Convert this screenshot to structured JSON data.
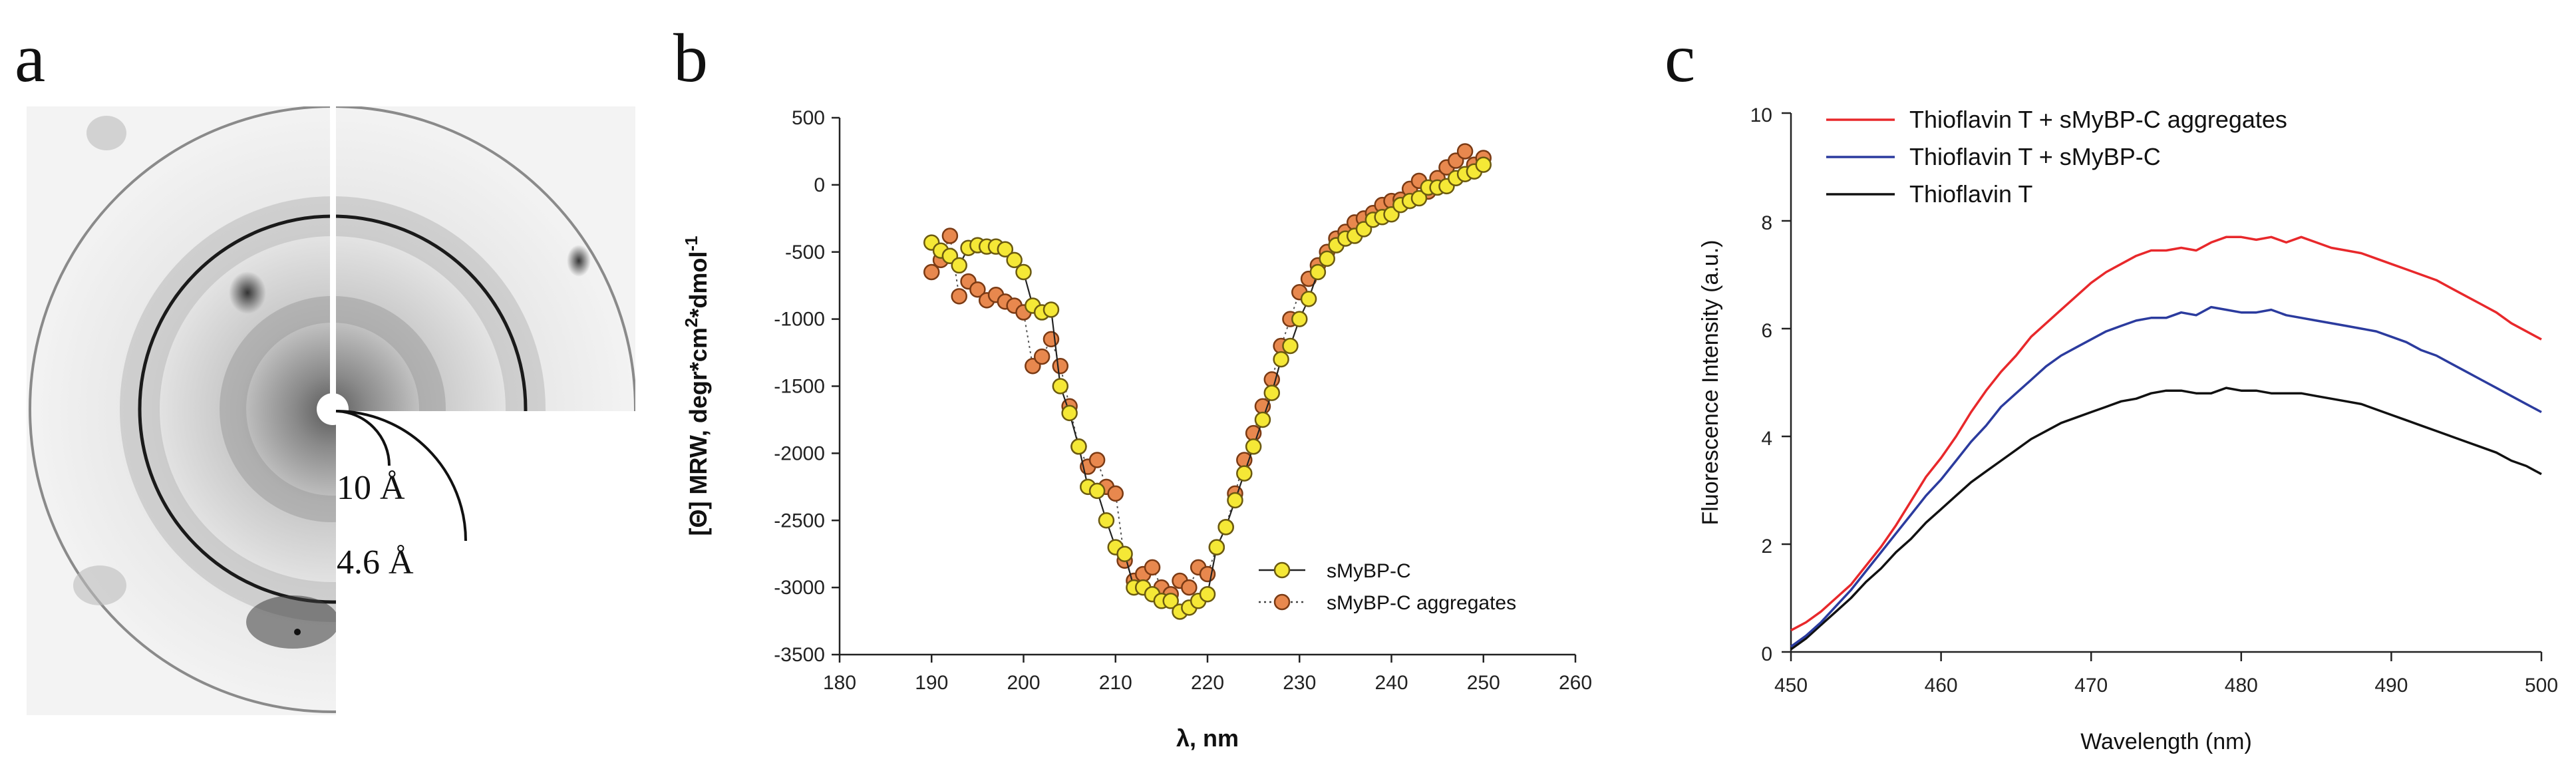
{
  "panels": {
    "a": {
      "letter": "a",
      "ring_labels": [
        "10 Å",
        "4.6 Å"
      ]
    },
    "b": {
      "letter": "b"
    },
    "c": {
      "letter": "c"
    }
  },
  "chart_data": [
    {
      "id": "b",
      "type": "scatter",
      "title": "",
      "xlabel": "λ, nm",
      "ylabel": "[Θ] MRW, degr*cm²*dmol⁻¹",
      "ylabel_parts": [
        "[Θ] MRW, degr*cm",
        "2",
        "*dmol",
        "-1"
      ],
      "xlim": [
        180,
        260
      ],
      "ylim": [
        -3500,
        500
      ],
      "xticks": [
        180,
        190,
        200,
        210,
        220,
        230,
        240,
        250,
        260
      ],
      "yticks": [
        500,
        0,
        -500,
        -1000,
        -1500,
        -2000,
        -2500,
        -3000,
        -3500
      ],
      "legend_position": "bottom-right",
      "series": [
        {
          "name": "sMyBP-C",
          "color": "#F5E836",
          "edge": "#6b5a10",
          "line": "solid",
          "x": [
            190,
            191,
            192,
            193,
            194,
            195,
            196,
            197,
            198,
            199,
            200,
            201,
            202,
            203,
            204,
            205,
            206,
            207,
            208,
            209,
            210,
            211,
            212,
            213,
            214,
            215,
            216,
            217,
            218,
            219,
            220,
            221,
            222,
            223,
            224,
            225,
            226,
            227,
            228,
            229,
            230,
            231,
            232,
            233,
            234,
            235,
            236,
            237,
            238,
            239,
            240,
            241,
            242,
            243,
            244,
            245,
            246,
            247,
            248,
            249,
            250
          ],
          "y": [
            -430,
            -490,
            -530,
            -600,
            -470,
            -450,
            -460,
            -460,
            -480,
            -560,
            -650,
            -900,
            -950,
            -930,
            -1500,
            -1700,
            -1950,
            -2250,
            -2280,
            -2500,
            -2700,
            -2750,
            -3000,
            -3000,
            -3050,
            -3100,
            -3100,
            -3180,
            -3150,
            -3100,
            -3050,
            -2700,
            -2550,
            -2350,
            -2150,
            -1950,
            -1750,
            -1550,
            -1300,
            -1200,
            -1000,
            -850,
            -650,
            -550,
            -450,
            -400,
            -380,
            -330,
            -260,
            -240,
            -220,
            -150,
            -120,
            -100,
            -20,
            -20,
            -10,
            50,
            80,
            100,
            150
          ]
        },
        {
          "name": "sMyBP-C aggregates",
          "color": "#E8884E",
          "edge": "#7a3a14",
          "line": "dotted",
          "x": [
            190,
            191,
            192,
            193,
            194,
            195,
            196,
            197,
            198,
            199,
            200,
            201,
            202,
            203,
            204,
            205,
            206,
            207,
            208,
            209,
            210,
            211,
            212,
            213,
            214,
            215,
            216,
            217,
            218,
            219,
            220,
            221,
            222,
            223,
            224,
            225,
            226,
            227,
            228,
            229,
            230,
            231,
            232,
            233,
            234,
            235,
            236,
            237,
            238,
            239,
            240,
            241,
            242,
            243,
            244,
            245,
            246,
            247,
            248,
            249,
            250
          ],
          "y": [
            -650,
            -560,
            -380,
            -830,
            -720,
            -780,
            -860,
            -820,
            -870,
            -900,
            -950,
            -1350,
            -1280,
            -1150,
            -1350,
            -1650,
            -1950,
            -2100,
            -2050,
            -2250,
            -2300,
            -2800,
            -2950,
            -2900,
            -2850,
            -3000,
            -3050,
            -2950,
            -3000,
            -2850,
            -2900,
            -2700,
            -2550,
            -2300,
            -2050,
            -1850,
            -1650,
            -1450,
            -1200,
            -1000,
            -800,
            -700,
            -600,
            -500,
            -400,
            -350,
            -280,
            -250,
            -210,
            -150,
            -120,
            -110,
            -30,
            30,
            -50,
            50,
            130,
            180,
            250,
            150,
            200
          ]
        }
      ]
    },
    {
      "id": "c",
      "type": "line",
      "title": "",
      "xlabel": "Wavelength (nm)",
      "ylabel": "Fluorescence Intensity (a.u.)",
      "xlim": [
        450,
        500
      ],
      "ylim": [
        0,
        10
      ],
      "xticks": [
        450,
        460,
        470,
        480,
        490,
        500
      ],
      "yticks": [
        0,
        2,
        4,
        6,
        8,
        10
      ],
      "legend_position": "top-left",
      "series": [
        {
          "name": "Thioflavin T + sMyBP-C aggregates",
          "color": "#E8282B",
          "x": [
            450,
            451,
            452,
            453,
            454,
            455,
            456,
            457,
            458,
            459,
            460,
            461,
            462,
            463,
            464,
            465,
            466,
            467,
            468,
            469,
            470,
            471,
            472,
            473,
            474,
            475,
            476,
            477,
            478,
            479,
            480,
            481,
            482,
            483,
            484,
            485,
            486,
            487,
            488,
            489,
            490,
            491,
            492,
            493,
            494,
            495,
            496,
            497,
            498,
            499,
            500
          ],
          "y": [
            0.4,
            0.55,
            0.75,
            1.0,
            1.25,
            1.6,
            1.95,
            2.35,
            2.8,
            3.25,
            3.6,
            4.0,
            4.45,
            4.85,
            5.2,
            5.5,
            5.85,
            6.1,
            6.35,
            6.6,
            6.85,
            7.05,
            7.2,
            7.35,
            7.45,
            7.45,
            7.5,
            7.45,
            7.6,
            7.7,
            7.7,
            7.65,
            7.7,
            7.6,
            7.7,
            7.6,
            7.5,
            7.45,
            7.4,
            7.3,
            7.2,
            7.1,
            7.0,
            6.9,
            6.75,
            6.6,
            6.45,
            6.3,
            6.1,
            5.95,
            5.8
          ]
        },
        {
          "name": "Thioflavin T + sMyBP-C",
          "color": "#2B3B9E",
          "x": [
            450,
            451,
            452,
            453,
            454,
            455,
            456,
            457,
            458,
            459,
            460,
            461,
            462,
            463,
            464,
            465,
            466,
            467,
            468,
            469,
            470,
            471,
            472,
            473,
            474,
            475,
            476,
            477,
            478,
            479,
            480,
            481,
            482,
            483,
            484,
            485,
            486,
            487,
            488,
            489,
            490,
            491,
            492,
            493,
            494,
            495,
            496,
            497,
            498,
            499,
            500
          ],
          "y": [
            0.1,
            0.3,
            0.55,
            0.85,
            1.15,
            1.5,
            1.85,
            2.2,
            2.55,
            2.9,
            3.2,
            3.55,
            3.9,
            4.2,
            4.55,
            4.8,
            5.05,
            5.3,
            5.5,
            5.65,
            5.8,
            5.95,
            6.05,
            6.15,
            6.2,
            6.2,
            6.3,
            6.25,
            6.4,
            6.35,
            6.3,
            6.3,
            6.35,
            6.25,
            6.2,
            6.15,
            6.1,
            6.05,
            6.0,
            5.95,
            5.85,
            5.75,
            5.6,
            5.5,
            5.35,
            5.2,
            5.05,
            4.9,
            4.75,
            4.6,
            4.45
          ]
        },
        {
          "name": "Thioflavin T",
          "color": "#111111",
          "x": [
            450,
            451,
            452,
            453,
            454,
            455,
            456,
            457,
            458,
            459,
            460,
            461,
            462,
            463,
            464,
            465,
            466,
            467,
            468,
            469,
            470,
            471,
            472,
            473,
            474,
            475,
            476,
            477,
            478,
            479,
            480,
            481,
            482,
            483,
            484,
            485,
            486,
            487,
            488,
            489,
            490,
            491,
            492,
            493,
            494,
            495,
            496,
            497,
            498,
            499,
            500
          ],
          "y": [
            0.05,
            0.25,
            0.5,
            0.75,
            1.0,
            1.3,
            1.55,
            1.85,
            2.1,
            2.4,
            2.65,
            2.9,
            3.15,
            3.35,
            3.55,
            3.75,
            3.95,
            4.1,
            4.25,
            4.35,
            4.45,
            4.55,
            4.65,
            4.7,
            4.8,
            4.85,
            4.85,
            4.8,
            4.8,
            4.9,
            4.85,
            4.85,
            4.8,
            4.8,
            4.8,
            4.75,
            4.7,
            4.65,
            4.6,
            4.5,
            4.4,
            4.3,
            4.2,
            4.1,
            4.0,
            3.9,
            3.8,
            3.7,
            3.55,
            3.45,
            3.3
          ]
        }
      ]
    }
  ]
}
